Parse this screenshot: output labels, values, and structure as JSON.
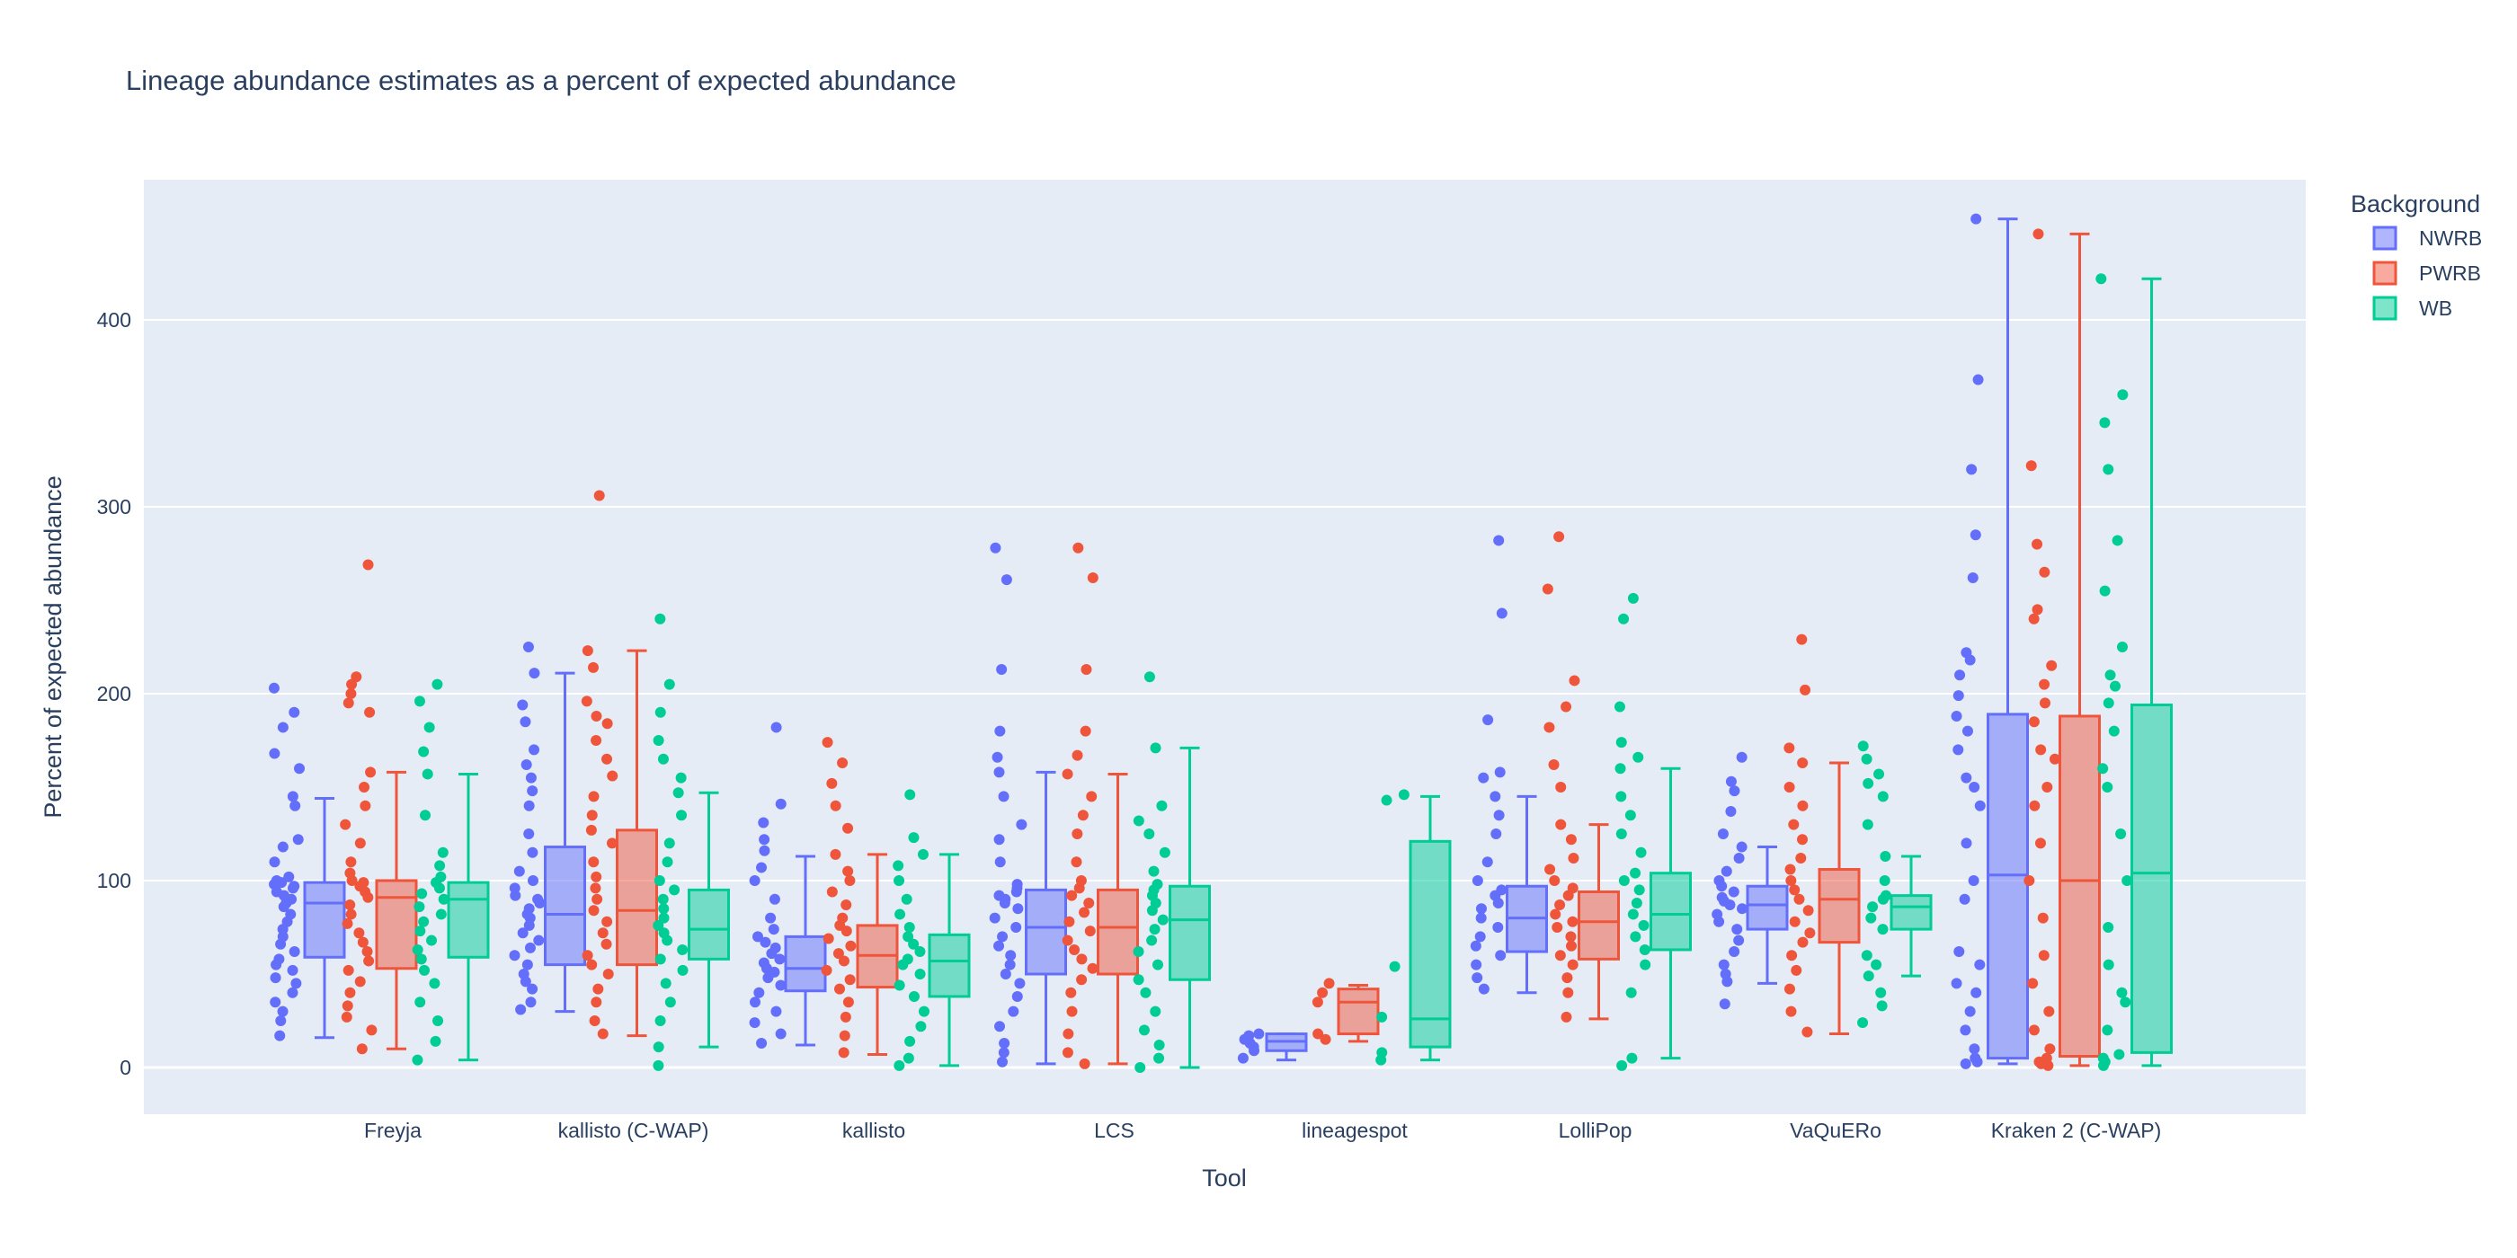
{
  "chart_data": {
    "type": "box",
    "title": "Lineage abundance estimates as a percent of expected abundance",
    "xlabel": "Tool",
    "ylabel": "Percent of expected abundance",
    "ylim": [
      -25,
      475
    ],
    "yticks": [
      0,
      100,
      200,
      300,
      400
    ],
    "grid": true,
    "legend": {
      "title": "Background",
      "position": "top-right"
    },
    "categories": [
      "Freyja",
      "kallisto (C-WAP)",
      "kallisto",
      "LCS",
      "lineagespot",
      "LolliPop",
      "VaQuERo",
      "Kraken 2 (C-WAP)"
    ],
    "series": [
      {
        "name": "NWRB",
        "color": "#636efa",
        "boxes": [
          {
            "min": 16,
            "q1": 59,
            "median": 88,
            "q3": 99,
            "max": 144,
            "outliers": [
              182,
              190,
              203
            ]
          },
          {
            "min": 30,
            "q1": 55,
            "median": 82,
            "q3": 118,
            "max": 211,
            "outliers": [
              225
            ]
          },
          {
            "min": 12,
            "q1": 41,
            "median": 53,
            "q3": 70,
            "max": 113,
            "outliers": [
              122,
              131,
              141,
              182
            ]
          },
          {
            "min": 2,
            "q1": 50,
            "median": 75,
            "q3": 95,
            "max": 158,
            "outliers": [
              166,
              180,
              213,
              261,
              278
            ]
          },
          {
            "min": 4,
            "q1": 9,
            "median": 14,
            "q3": 18,
            "max": 18,
            "outliers": []
          },
          {
            "min": 40,
            "q1": 62,
            "median": 80,
            "q3": 97,
            "max": 145,
            "outliers": [
              155,
              186,
              243,
              282
            ]
          },
          {
            "min": 45,
            "q1": 74,
            "median": 87,
            "q3": 97,
            "max": 118,
            "outliers": [
              33,
              125,
              137,
              148,
              166
            ]
          },
          {
            "min": 2,
            "q1": 5,
            "median": 103,
            "q3": 189,
            "max": 454,
            "outliers": []
          }
        ],
        "points": [
          [
            17,
            25,
            30,
            35,
            40,
            45,
            48,
            52,
            55,
            58,
            62,
            66,
            70,
            74,
            78,
            82,
            86,
            88,
            90,
            92,
            94,
            96,
            97,
            98,
            99,
            100,
            102,
            110,
            118,
            122,
            140,
            145,
            160,
            168,
            182,
            190,
            203
          ],
          [
            31,
            35,
            42,
            46,
            50,
            55,
            60,
            64,
            68,
            72,
            76,
            80,
            82,
            85,
            88,
            90,
            92,
            96,
            100,
            105,
            115,
            125,
            140,
            148,
            155,
            162,
            170,
            185,
            194,
            211,
            225
          ],
          [
            13,
            18,
            24,
            30,
            35,
            40,
            44,
            48,
            51,
            53,
            56,
            58,
            61,
            64,
            67,
            70,
            74,
            80,
            90,
            100,
            107,
            116,
            122,
            131,
            141,
            182
          ],
          [
            3,
            8,
            13,
            22,
            30,
            38,
            45,
            50,
            55,
            60,
            65,
            70,
            75,
            80,
            85,
            88,
            90,
            92,
            94,
            96,
            98,
            110,
            122,
            130,
            145,
            158,
            166,
            180,
            213,
            261,
            278
          ],
          [
            5,
            9,
            11,
            13,
            15,
            17,
            18
          ],
          [
            42,
            48,
            55,
            60,
            65,
            70,
            75,
            80,
            85,
            88,
            92,
            95,
            100,
            110,
            125,
            135,
            145,
            155,
            158,
            186,
            243,
            282
          ],
          [
            34,
            46,
            50,
            55,
            62,
            68,
            74,
            78,
            82,
            85,
            87,
            89,
            91,
            94,
            97,
            100,
            105,
            112,
            118,
            125,
            137,
            148,
            153,
            166
          ],
          [
            2,
            3,
            5,
            10,
            20,
            30,
            40,
            45,
            55,
            62,
            90,
            100,
            120,
            140,
            150,
            155,
            170,
            180,
            188,
            199,
            210,
            218,
            222,
            262,
            285,
            320,
            368,
            454
          ]
        ]
      },
      {
        "name": "PWRB",
        "color": "#ef553b",
        "boxes": [
          {
            "min": 10,
            "q1": 53,
            "median": 91,
            "q3": 100,
            "max": 158,
            "outliers": [
              190,
              195,
              200,
              205,
              209,
              269
            ]
          },
          {
            "min": 17,
            "q1": 55,
            "median": 84,
            "q3": 127,
            "max": 223,
            "outliers": [
              306
            ]
          },
          {
            "min": 7,
            "q1": 43,
            "median": 60,
            "q3": 76,
            "max": 114,
            "outliers": [
              128,
              140,
              152,
              163,
              174
            ]
          },
          {
            "min": 2,
            "q1": 50,
            "median": 75,
            "q3": 95,
            "max": 157,
            "outliers": [
              167,
              180,
              213,
              262,
              278
            ]
          },
          {
            "min": 14,
            "q1": 18,
            "median": 35,
            "q3": 42,
            "max": 44,
            "outliers": []
          },
          {
            "min": 26,
            "q1": 58,
            "median": 78,
            "q3": 94,
            "max": 130,
            "outliers": [
              150,
              162,
              182,
              193,
              207,
              256,
              284
            ]
          },
          {
            "min": 18,
            "q1": 67,
            "median": 90,
            "q3": 106,
            "max": 163,
            "outliers": [
              202,
              229
            ]
          },
          {
            "min": 1,
            "q1": 6,
            "median": 100,
            "q3": 188,
            "max": 446,
            "outliers": []
          }
        ],
        "points": [
          [
            10,
            20,
            27,
            33,
            40,
            46,
            52,
            57,
            62,
            67,
            72,
            77,
            82,
            87,
            91,
            94,
            97,
            99,
            100,
            104,
            110,
            120,
            130,
            140,
            150,
            158,
            190,
            195,
            200,
            205,
            209,
            269
          ],
          [
            18,
            25,
            35,
            42,
            50,
            55,
            60,
            66,
            72,
            78,
            84,
            90,
            96,
            102,
            110,
            120,
            127,
            135,
            145,
            156,
            165,
            175,
            184,
            188,
            196,
            214,
            223,
            306
          ],
          [
            8,
            17,
            27,
            35,
            42,
            47,
            52,
            57,
            61,
            65,
            69,
            73,
            76,
            80,
            87,
            94,
            100,
            105,
            114,
            128,
            140,
            152,
            163,
            174
          ],
          [
            2,
            8,
            18,
            30,
            40,
            47,
            53,
            58,
            63,
            68,
            73,
            78,
            83,
            88,
            92,
            96,
            100,
            110,
            125,
            135,
            145,
            157,
            167,
            180,
            213,
            262,
            278
          ],
          [
            15,
            18,
            35,
            40,
            45
          ],
          [
            27,
            40,
            48,
            55,
            60,
            65,
            70,
            75,
            78,
            82,
            87,
            92,
            96,
            100,
            106,
            112,
            122,
            130,
            150,
            162,
            182,
            193,
            207,
            256,
            284
          ],
          [
            19,
            30,
            42,
            52,
            60,
            67,
            72,
            78,
            84,
            90,
            95,
            100,
            106,
            112,
            122,
            130,
            140,
            150,
            163,
            171,
            202,
            229
          ],
          [
            1,
            2,
            3,
            5,
            10,
            20,
            30,
            45,
            60,
            80,
            100,
            120,
            140,
            150,
            165,
            170,
            185,
            195,
            205,
            215,
            240,
            245,
            265,
            280,
            322,
            446
          ]
        ]
      },
      {
        "name": "WB",
        "color": "#00cc96",
        "boxes": [
          {
            "min": 4,
            "q1": 59,
            "median": 90,
            "q3": 99,
            "max": 157,
            "outliers": [
              169,
              182,
              196,
              205
            ]
          },
          {
            "min": 11,
            "q1": 58,
            "median": 74,
            "q3": 95,
            "max": 147,
            "outliers": [
              155,
              165,
              175,
              190,
              205,
              240
            ]
          },
          {
            "min": 1,
            "q1": 38,
            "median": 57,
            "q3": 71,
            "max": 114,
            "outliers": [
              123,
              146
            ]
          },
          {
            "min": 0,
            "q1": 47,
            "median": 79,
            "q3": 97,
            "max": 171,
            "outliers": [
              209
            ]
          },
          {
            "min": 4,
            "q1": 11,
            "median": 26,
            "q3": 121,
            "max": 145,
            "outliers": []
          },
          {
            "min": 5,
            "q1": 63,
            "median": 82,
            "q3": 104,
            "max": 160,
            "outliers": [
              174,
              193,
              240,
              251
            ]
          },
          {
            "min": 49,
            "q1": 74,
            "median": 86,
            "q3": 92,
            "max": 113,
            "outliers": [
              24,
              33,
              40,
              130,
              145,
              157,
              165,
              172
            ]
          },
          {
            "min": 1,
            "q1": 8,
            "median": 104,
            "q3": 194,
            "max": 422,
            "outliers": []
          }
        ],
        "points": [
          [
            4,
            14,
            25,
            35,
            45,
            52,
            58,
            63,
            68,
            73,
            78,
            82,
            86,
            90,
            93,
            96,
            99,
            102,
            108,
            115,
            135,
            157,
            169,
            182,
            196,
            205
          ],
          [
            1,
            11,
            25,
            35,
            45,
            52,
            58,
            63,
            68,
            72,
            76,
            80,
            85,
            90,
            95,
            100,
            110,
            120,
            135,
            147,
            155,
            165,
            175,
            190,
            205,
            240
          ],
          [
            1,
            5,
            14,
            22,
            30,
            38,
            44,
            50,
            55,
            58,
            62,
            66,
            70,
            75,
            82,
            90,
            100,
            108,
            114,
            123,
            146
          ],
          [
            0,
            5,
            12,
            20,
            30,
            40,
            47,
            55,
            62,
            68,
            74,
            79,
            84,
            88,
            92,
            95,
            98,
            105,
            115,
            125,
            132,
            140,
            171,
            209
          ],
          [
            4,
            8,
            27,
            54,
            143,
            146
          ],
          [
            1,
            5,
            40,
            55,
            63,
            70,
            76,
            82,
            88,
            95,
            100,
            104,
            115,
            125,
            135,
            145,
            160,
            166,
            174,
            193,
            240,
            251
          ],
          [
            24,
            33,
            40,
            49,
            55,
            60,
            74,
            80,
            86,
            90,
            92,
            100,
            113,
            130,
            145,
            152,
            157,
            165,
            172
          ],
          [
            1,
            3,
            5,
            7,
            20,
            35,
            40,
            55,
            75,
            100,
            125,
            150,
            160,
            180,
            195,
            204,
            210,
            225,
            255,
            282,
            320,
            345,
            360,
            422
          ]
        ]
      }
    ]
  }
}
